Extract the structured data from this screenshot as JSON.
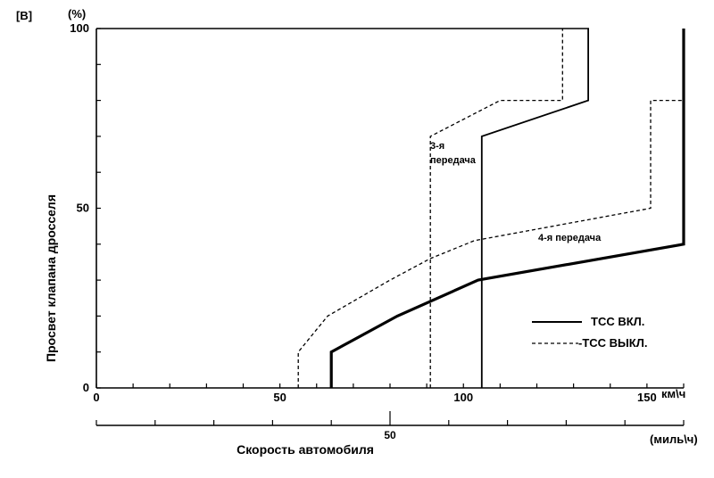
{
  "figure_label": "[B]",
  "chart_data": {
    "type": "line",
    "title": "",
    "ylabel": "Просвет клапана дросселя",
    "yunit": "(%)",
    "ylim": [
      0,
      100
    ],
    "yticks": [
      "0",
      "50",
      "100"
    ],
    "xlabel": "Скорость автомобиля",
    "xunit_kmh": "км\\ч",
    "xlim_kmh": [
      0,
      160
    ],
    "xticks_kmh": [
      "0",
      "50",
      "100",
      "150"
    ],
    "xunit_mph": "(миль\\ч)",
    "xlim_mph": [
      0,
      100
    ],
    "xticks_mph": [
      "50"
    ],
    "series": [
      {
        "name": "TCC ВКЛ.",
        "style": "solid",
        "width": "thick",
        "x": [
          64,
          64,
          82,
          104,
          160,
          160
        ],
        "y": [
          0,
          10,
          20,
          30,
          40,
          100
        ]
      },
      {
        "name": "TCC ВКЛ.",
        "style": "solid",
        "width": "normal",
        "x": [
          105,
          105,
          134,
          134
        ],
        "y": [
          0,
          70,
          80,
          100
        ]
      },
      {
        "name": "TCC ВЫКЛ.",
        "style": "dashed",
        "x": [
          55,
          55,
          63,
          80,
          91,
          103,
          151,
          151,
          160
        ],
        "y": [
          0,
          10,
          20,
          30,
          36,
          41,
          50,
          80,
          80
        ]
      },
      {
        "name": "TCC ВЫКЛ.",
        "style": "dashed",
        "x": [
          91,
          91,
          110,
          127,
          127
        ],
        "y": [
          0,
          70,
          80,
          80,
          100
        ]
      }
    ],
    "annotations": [
      "3-я\nпередача",
      "4-я передача"
    ],
    "legend": {
      "position": "bottom-right",
      "entries": [
        {
          "label": "TCC ВКЛ.",
          "style": "solid"
        },
        {
          "label": "-TCC ВЫКЛ.",
          "style": "dashed"
        }
      ]
    }
  }
}
